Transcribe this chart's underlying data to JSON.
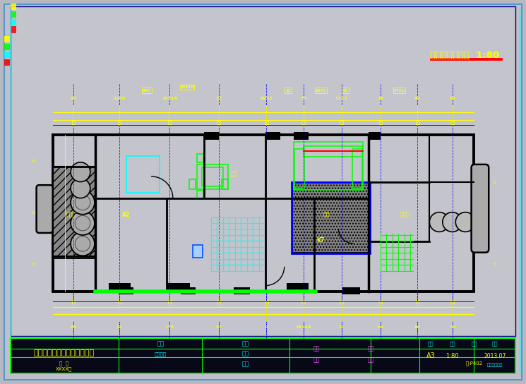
{
  "background_color": "#b8b8c0",
  "drawing_bg": "#c0c0c8",
  "plan_title": "一层平面布置图  1:80",
  "plan_title_color": "#ffff00",
  "plan_title_underline_color": "#ff0000",
  "company_name": "深圳市布饰室内设计有限公司",
  "company_name_color": "#ffff00",
  "title_block_line_color": "#00ff00",
  "dim_color": "#ffff00",
  "wall_color": "#000000",
  "grid_line_color": "#0000ff",
  "green_line_color": "#00ff00",
  "cyan_line_color": "#00ffff",
  "red_line_color": "#ff0000",
  "stair_color": "#00ffff",
  "fig_width": 9.68,
  "fig_height": 7.07
}
